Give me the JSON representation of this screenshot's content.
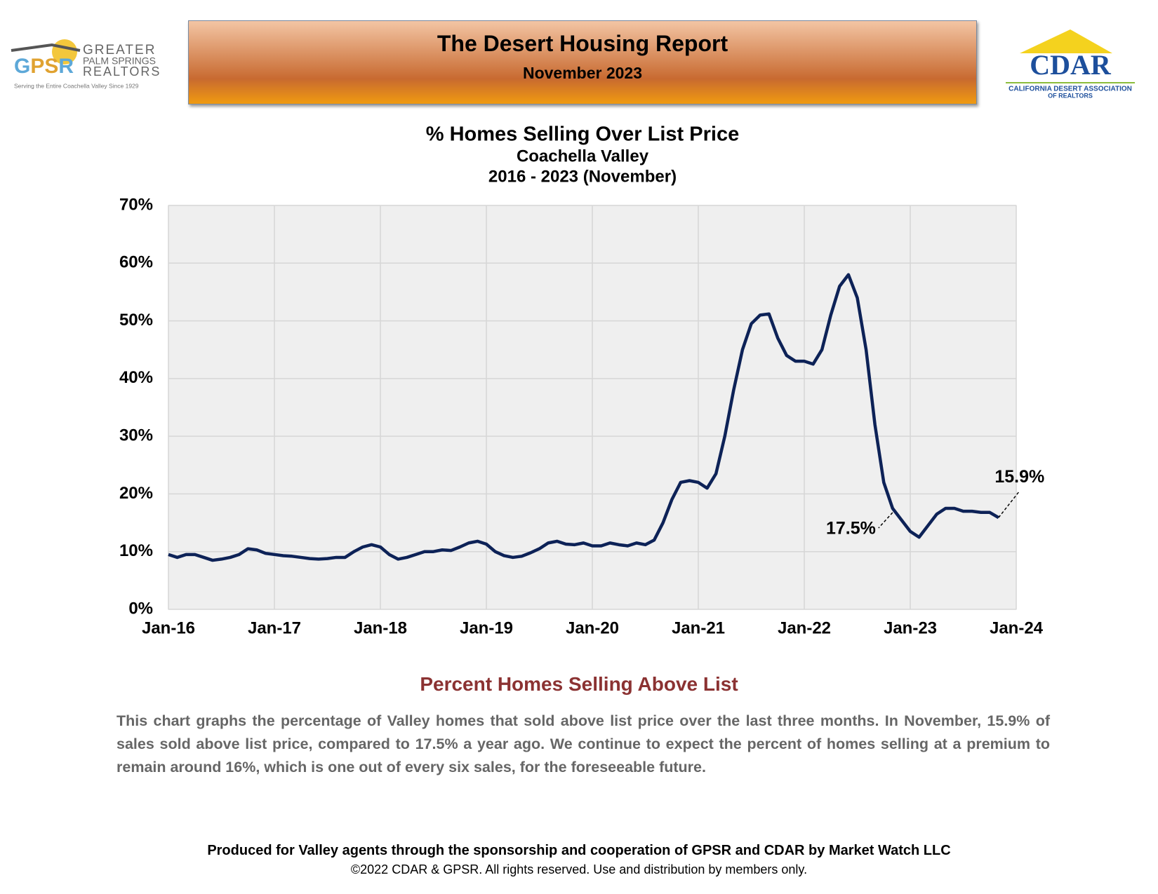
{
  "header": {
    "title": "The Desert Housing Report",
    "subtitle": "November 2023",
    "left_logo": {
      "mark": "GPSR",
      "line1": "GREATER",
      "line2": "PALM SPRINGS",
      "line3": "REALTORS",
      "tagline": "Serving the Entire Coachella Valley Since 1929"
    },
    "right_logo": {
      "mark": "CDAR",
      "line1": "CALIFORNIA DESERT ASSOCIATION",
      "line2": "OF REALTORS"
    }
  },
  "chart_data": {
    "type": "line",
    "title": "% Homes Selling Over List Price",
    "subtitle": "Coachella Valley",
    "subtitle2": "2016 - 2023 (November)",
    "categories": [
      "Jan-16",
      null,
      null,
      null,
      null,
      null,
      null,
      null,
      null,
      null,
      null,
      null,
      "Jan-17",
      null,
      null,
      null,
      null,
      null,
      null,
      null,
      null,
      null,
      null,
      null,
      "Jan-18",
      null,
      null,
      null,
      null,
      null,
      null,
      null,
      null,
      null,
      null,
      null,
      "Jan-19",
      null,
      null,
      null,
      null,
      null,
      null,
      null,
      null,
      null,
      null,
      null,
      "Jan-20",
      null,
      null,
      null,
      null,
      null,
      null,
      null,
      null,
      null,
      null,
      null,
      "Jan-21",
      null,
      null,
      null,
      null,
      null,
      null,
      null,
      null,
      null,
      null,
      null,
      "Jan-22",
      null,
      null,
      null,
      null,
      null,
      null,
      null,
      null,
      null,
      null,
      null,
      "Jan-23",
      null,
      null,
      null,
      null,
      null,
      null,
      null,
      null,
      null,
      null,
      null,
      "Jan-24"
    ],
    "series": [
      {
        "name": "% Homes Selling Over List Price",
        "color": "#0d2257",
        "values": [
          9.5,
          9,
          9.5,
          9.5,
          9,
          8.5,
          8.7,
          9,
          9.5,
          10.5,
          10.3,
          9.7,
          9.5,
          9.3,
          9.2,
          9,
          8.8,
          8.7,
          8.8,
          9,
          9,
          10,
          10.8,
          11.2,
          10.8,
          9.5,
          8.7,
          9,
          9.5,
          10,
          10,
          10.3,
          10.2,
          10.8,
          11.5,
          11.8,
          11.3,
          10,
          9.3,
          9,
          9.2,
          9.8,
          10.5,
          11.5,
          11.8,
          11.3,
          11.2,
          11.5,
          11,
          11,
          11.5,
          11.2,
          11,
          11.5,
          11.2,
          12,
          15,
          19,
          22,
          22.3,
          22,
          21,
          23.5,
          30,
          38,
          45,
          49.5,
          51,
          51.2,
          47,
          44,
          43,
          43,
          42.5,
          45,
          51,
          56,
          58,
          54,
          45,
          32,
          22,
          17.5,
          15.5,
          13.5,
          12.5,
          14.5,
          16.5,
          17.5,
          17.5,
          17,
          17,
          16.8,
          16.8,
          15.9,
          null,
          null
        ]
      }
    ],
    "ylim": [
      0,
      70
    ],
    "yticks": [
      {
        "value": 0,
        "label": "0%"
      },
      {
        "value": 10,
        "label": "10%"
      },
      {
        "value": 20,
        "label": "20%"
      },
      {
        "value": 30,
        "label": "30%"
      },
      {
        "value": 40,
        "label": "40%"
      },
      {
        "value": 50,
        "label": "50%"
      },
      {
        "value": 60,
        "label": "60%"
      },
      {
        "value": 70,
        "label": "70%"
      }
    ],
    "grid": true,
    "annotations": [
      {
        "text": "15.9%"
      },
      {
        "text": "17.5%"
      }
    ]
  },
  "body": {
    "heading": "Percent Homes Selling Above List",
    "paragraph": "This chart graphs the percentage of Valley homes that sold above list price over the last three months. In November, 15.9% of sales sold above list price, compared to 17.5% a year ago. We continue to expect the percent of homes selling at a premium to remain around 16%, which is one out of every six sales, for the foreseeable future."
  },
  "footer": {
    "line1": "Produced for Valley agents through the sponsorship and cooperation of GPSR and CDAR by Market Watch LLC",
    "line2": "©2022 CDAR & GPSR.  All rights reserved.  Use and distribution by members only."
  }
}
